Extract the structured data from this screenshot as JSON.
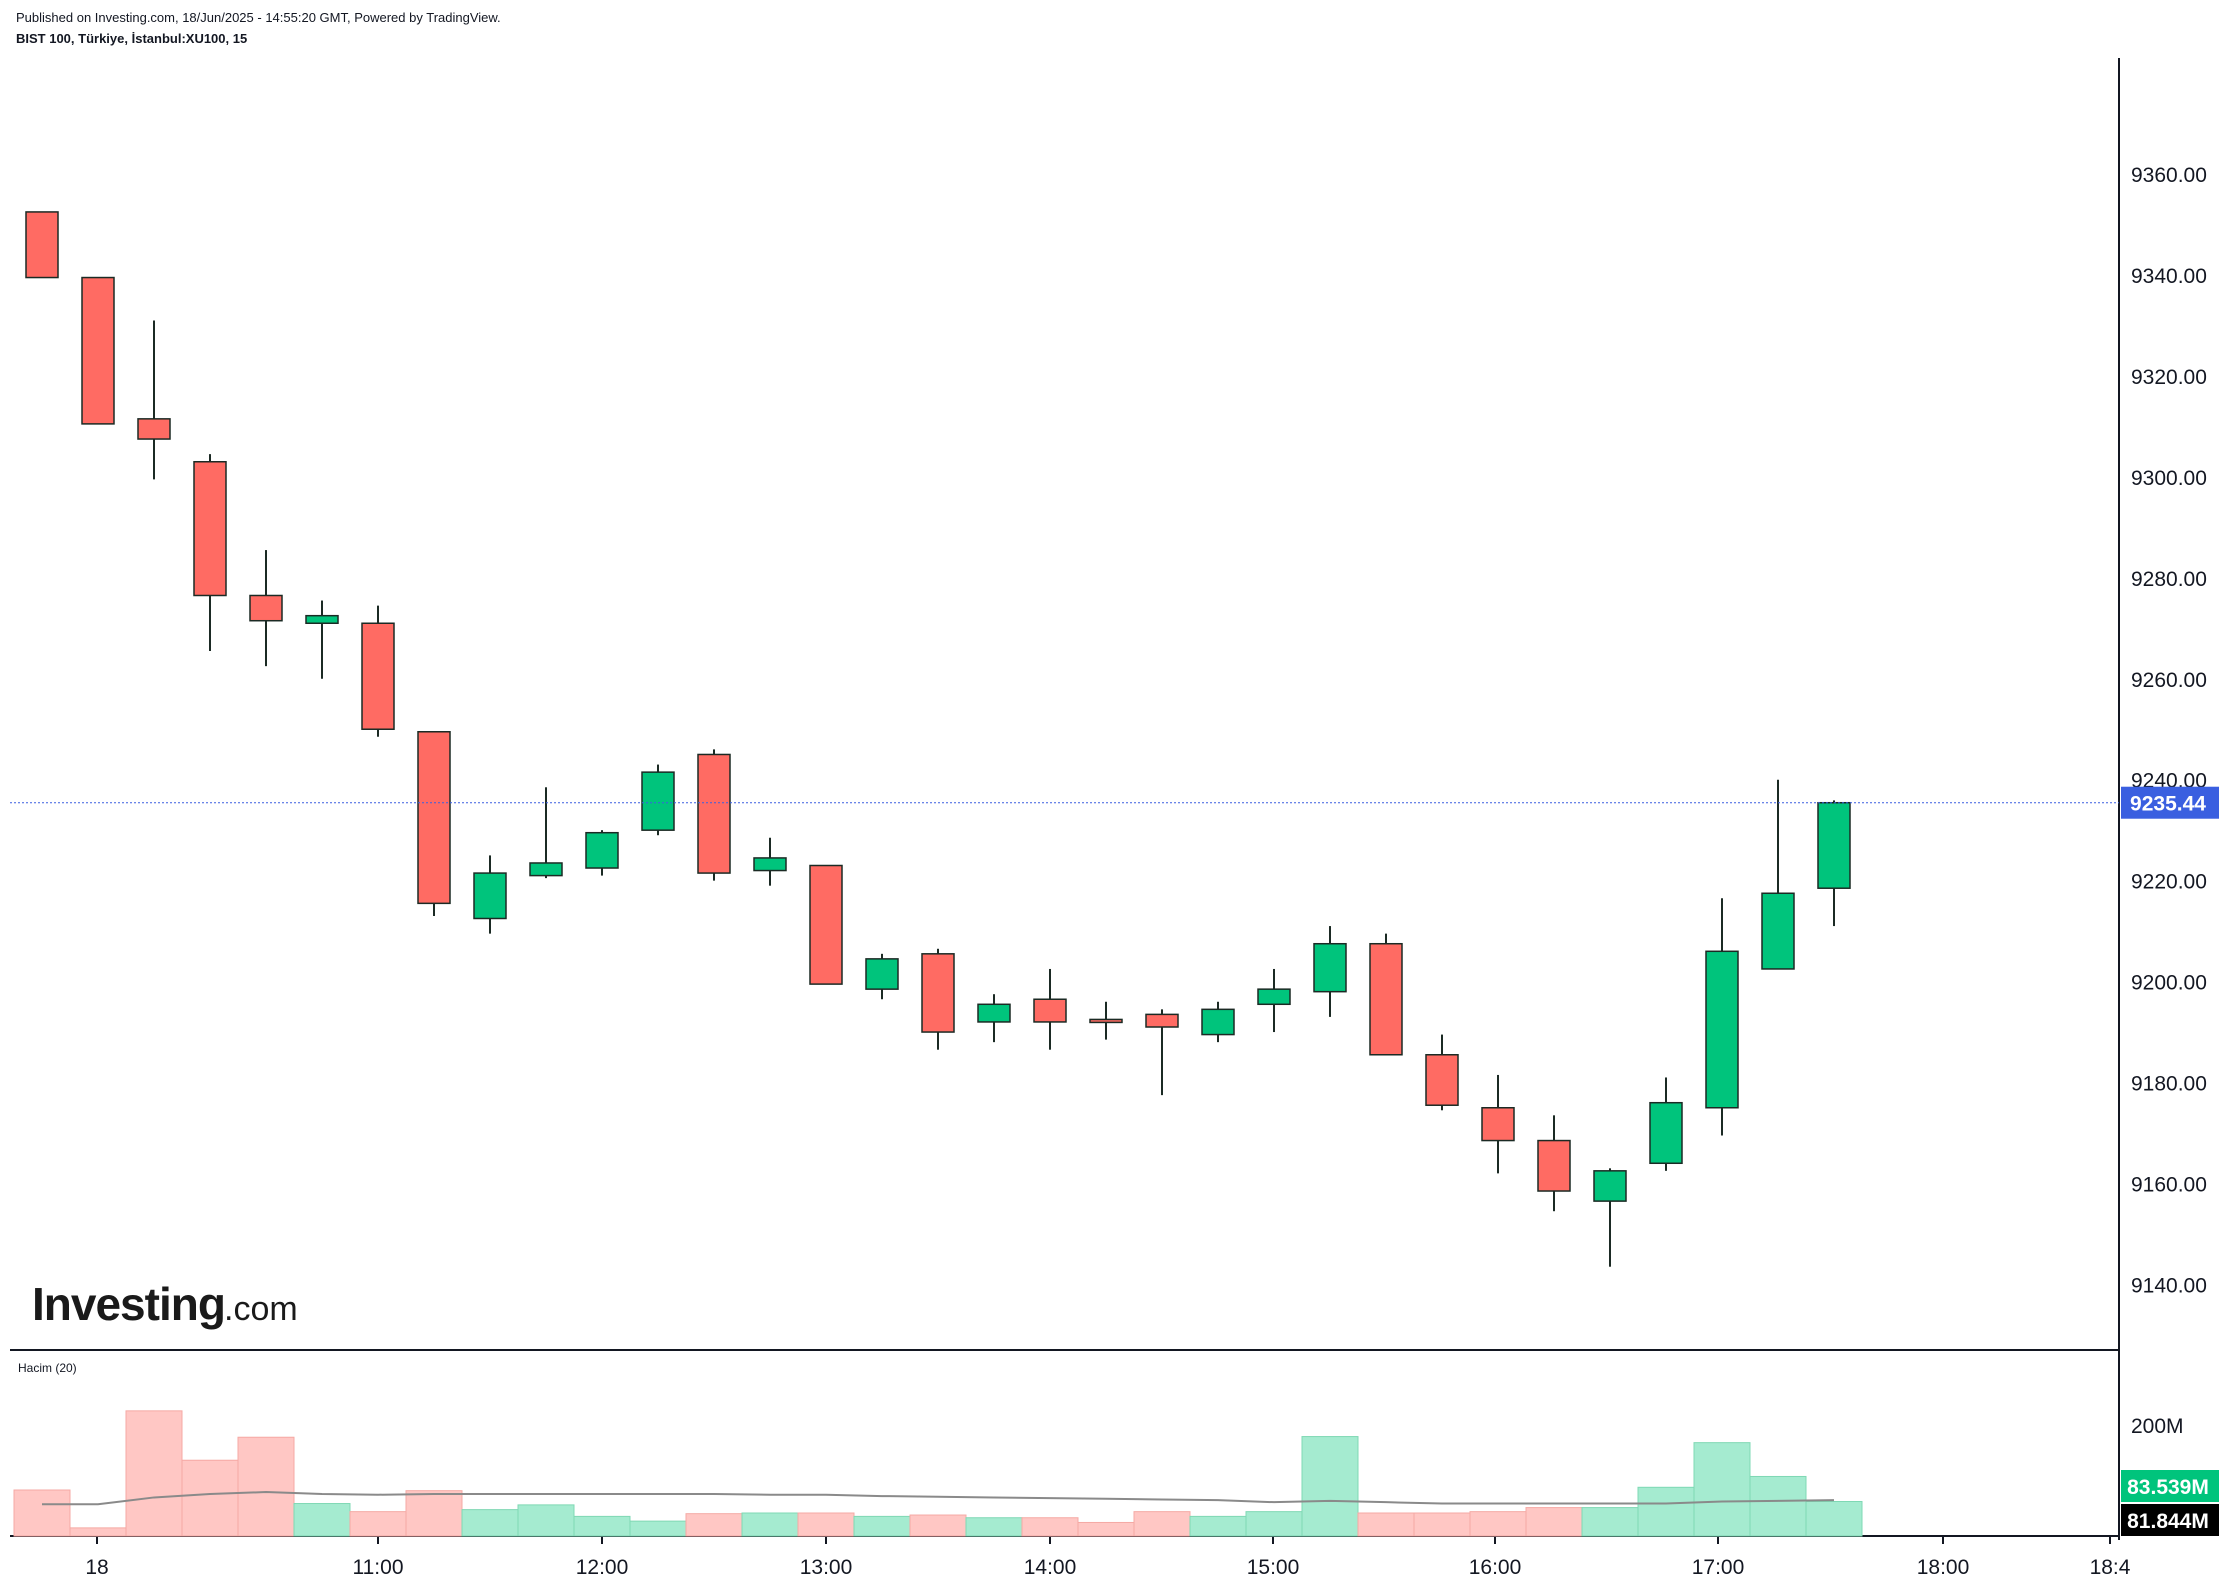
{
  "header": {
    "published": "Published on Investing.com, 18/Jun/2025 - 14:55:20 GMT, Powered by TradingView.",
    "symbol": "BIST 100, Türkiye, İstanbul:XU100, 15"
  },
  "logo": {
    "main": "Investing",
    "suffix": ".com"
  },
  "volume_panel": {
    "label": "Hacim (20)",
    "axis_label": "200M",
    "badge_volume": "83.539M",
    "badge_ma": "81.844M"
  },
  "price_badge": "9235.44",
  "colors": {
    "up": "#00c47c",
    "down": "#ff6b63",
    "up_vol": "#a5ebd0",
    "down_vol": "#ffc7c4",
    "price_line": "#3a5fe0",
    "ma_line": "#8a8a8a",
    "badge_vol": "#00c47c",
    "badge_ma": "#000000"
  },
  "chart_data": {
    "type": "candlestick",
    "interval": "15",
    "x_ticks": [
      "18",
      "11:00",
      "12:00",
      "13:00",
      "14:00",
      "15:00",
      "16:00",
      "17:00",
      "18:00",
      "18:4"
    ],
    "y_ticks": [
      "9360.00",
      "9340.00",
      "9320.00",
      "9300.00",
      "9280.00",
      "9260.00",
      "9240.00",
      "9220.00",
      "9200.00",
      "9180.00",
      "9160.00",
      "9140.00"
    ],
    "ylim": [
      9127,
      9383
    ],
    "last_price": 9235.44,
    "candles": [
      {
        "o": 9352.5,
        "h": 9352.5,
        "l": 9339.5,
        "c": 9339.5
      },
      {
        "o": 9339.5,
        "h": 9339.5,
        "l": 9310.5,
        "c": 9310.5
      },
      {
        "o": 9311.5,
        "h": 9331.0,
        "l": 9299.5,
        "c": 9307.5
      },
      {
        "o": 9303.0,
        "h": 9304.5,
        "l": 9265.5,
        "c": 9276.5
      },
      {
        "o": 9276.5,
        "h": 9285.5,
        "l": 9262.5,
        "c": 9271.5
      },
      {
        "o": 9271.0,
        "h": 9275.5,
        "l": 9260.0,
        "c": 9272.5
      },
      {
        "o": 9271.0,
        "h": 9274.5,
        "l": 9248.5,
        "c": 9250.0
      },
      {
        "o": 9249.5,
        "h": 9249.5,
        "l": 9213.0,
        "c": 9215.5
      },
      {
        "o": 9212.5,
        "h": 9225.0,
        "l": 9209.5,
        "c": 9221.5
      },
      {
        "o": 9221.0,
        "h": 9238.5,
        "l": 9220.5,
        "c": 9223.5
      },
      {
        "o": 9222.5,
        "h": 9230.0,
        "l": 9221.0,
        "c": 9229.5
      },
      {
        "o": 9230.0,
        "h": 9243.0,
        "l": 9229.0,
        "c": 9241.5
      },
      {
        "o": 9245.0,
        "h": 9246.0,
        "l": 9220.0,
        "c": 9221.5
      },
      {
        "o": 9222.0,
        "h": 9228.5,
        "l": 9219.0,
        "c": 9224.5
      },
      {
        "o": 9223.0,
        "h": 9223.0,
        "l": 9199.5,
        "c": 9199.5
      },
      {
        "o": 9198.5,
        "h": 9205.5,
        "l": 9196.5,
        "c": 9204.5
      },
      {
        "o": 9205.5,
        "h": 9206.5,
        "l": 9186.5,
        "c": 9190.0
      },
      {
        "o": 9192.0,
        "h": 9197.5,
        "l": 9188.0,
        "c": 9195.5
      },
      {
        "o": 9196.5,
        "h": 9202.5,
        "l": 9186.5,
        "c": 9192.0
      },
      {
        "o": 9192.5,
        "h": 9196.0,
        "l": 9188.5,
        "c": 9192.0
      },
      {
        "o": 9193.5,
        "h": 9194.5,
        "l": 9177.5,
        "c": 9191.0
      },
      {
        "o": 9189.5,
        "h": 9196.0,
        "l": 9188.0,
        "c": 9194.5
      },
      {
        "o": 9195.5,
        "h": 9202.5,
        "l": 9190.0,
        "c": 9198.5
      },
      {
        "o": 9198.0,
        "h": 9211.0,
        "l": 9193.0,
        "c": 9207.5
      },
      {
        "o": 9207.5,
        "h": 9209.5,
        "l": 9185.5,
        "c": 9185.5
      },
      {
        "o": 9185.5,
        "h": 9189.5,
        "l": 9174.5,
        "c": 9175.5
      },
      {
        "o": 9175.0,
        "h": 9181.5,
        "l": 9162.0,
        "c": 9168.5
      },
      {
        "o": 9168.5,
        "h": 9173.5,
        "l": 9154.5,
        "c": 9158.5
      },
      {
        "o": 9156.5,
        "h": 9163.0,
        "l": 9143.5,
        "c": 9162.5
      },
      {
        "o": 9164.0,
        "h": 9181.0,
        "l": 9162.5,
        "c": 9176.0
      },
      {
        "o": 9175.0,
        "h": 9216.5,
        "l": 9169.5,
        "c": 9206.0
      },
      {
        "o": 9202.5,
        "h": 9240.0,
        "l": 9202.5,
        "c": 9217.5
      },
      {
        "o": 9218.5,
        "h": 9235.9,
        "l": 9211.0,
        "c": 9235.44
      }
    ],
    "volume": {
      "ylim": [
        0,
        272
      ],
      "values": [
        68,
        12,
        185,
        112,
        146,
        48,
        36,
        67,
        39,
        46,
        29,
        22,
        33,
        34,
        34,
        29,
        31,
        27,
        27,
        20,
        36,
        29,
        36,
        147,
        34,
        34,
        36,
        42,
        42,
        72,
        138,
        88,
        51
      ],
      "ma": [
        47,
        47,
        57,
        62,
        65,
        62,
        61,
        62,
        62,
        62,
        62,
        62,
        62,
        61,
        61,
        59,
        58,
        57,
        56,
        55,
        54,
        53,
        50,
        52,
        50,
        48,
        48,
        48,
        48,
        48,
        51,
        52,
        53
      ]
    }
  }
}
